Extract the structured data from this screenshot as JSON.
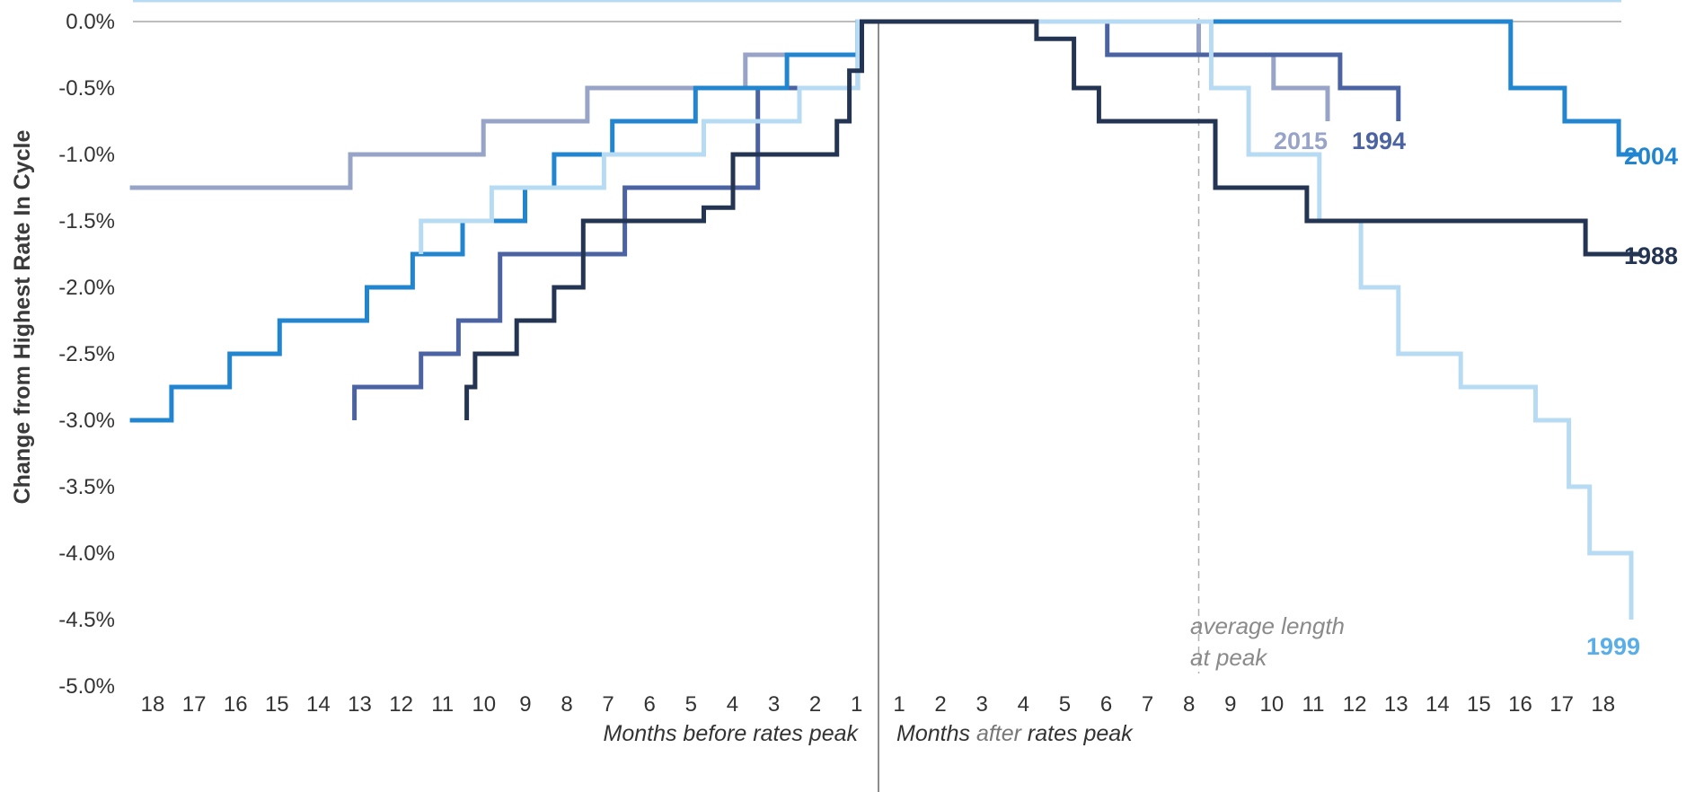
{
  "chart_data": {
    "type": "line",
    "step": true,
    "ylabel": "Change from Highest Rate In Cycle",
    "ylim": [
      -5.0,
      0.0
    ],
    "yticks": [
      "0.0%",
      "-0.5%",
      "-1.0%",
      "-1.5%",
      "-2.0%",
      "-2.5%",
      "-3.0%",
      "-3.5%",
      "-4.0%",
      "-4.5%",
      "-5.0%"
    ],
    "xlim": [
      -18,
      18
    ],
    "xticks_before": [
      "18",
      "17",
      "16",
      "15",
      "14",
      "13",
      "12",
      "11",
      "10",
      "9",
      "8",
      "7",
      "6",
      "5",
      "4",
      "3",
      "2",
      "1"
    ],
    "xticks_after": [
      "1",
      "2",
      "3",
      "4",
      "5",
      "6",
      "7",
      "8",
      "9",
      "10",
      "11",
      "12",
      "13",
      "14",
      "15",
      "16",
      "17",
      "18"
    ],
    "xlabel_before": {
      "a": "Months",
      "b": " before rates peak"
    },
    "xlabel_after": {
      "a": "Months ",
      "b": "after",
      "c": " rates peak"
    },
    "annotation": {
      "line1": "average length",
      "line2": "at peak",
      "x": 7.7
    },
    "series": [
      {
        "name": "2015",
        "color": "#97a4c8",
        "points": [
          [
            -18,
            -1.25
          ],
          [
            -12.7,
            -1.25
          ],
          [
            -12.7,
            -1.0
          ],
          [
            -9.5,
            -1.0
          ],
          [
            -9.5,
            -0.75
          ],
          [
            -7,
            -0.75
          ],
          [
            -7,
            -0.5
          ],
          [
            -3.2,
            -0.5
          ],
          [
            -3.2,
            -0.25
          ],
          [
            -0.5,
            -0.25
          ],
          [
            -0.5,
            0
          ],
          [
            7.7,
            0
          ],
          [
            7.7,
            -0.25
          ],
          [
            9.5,
            -0.25
          ],
          [
            9.5,
            -0.5
          ],
          [
            10.8,
            -0.5
          ],
          [
            10.8,
            -0.75
          ]
        ]
      },
      {
        "name": "1994",
        "color": "#4b63a2",
        "points": [
          [
            -12.6,
            -3.0
          ],
          [
            -12.6,
            -2.75
          ],
          [
            -11,
            -2.75
          ],
          [
            -11,
            -2.5
          ],
          [
            -10.1,
            -2.5
          ],
          [
            -10.1,
            -2.25
          ],
          [
            -9.1,
            -2.25
          ],
          [
            -9.1,
            -1.75
          ],
          [
            -6.1,
            -1.75
          ],
          [
            -6.1,
            -1.25
          ],
          [
            -2.9,
            -1.25
          ],
          [
            -2.9,
            -0.5
          ],
          [
            -0.5,
            -0.5
          ],
          [
            -0.5,
            0
          ],
          [
            5.5,
            0
          ],
          [
            5.5,
            -0.25
          ],
          [
            11.1,
            -0.25
          ],
          [
            11.1,
            -0.5
          ],
          [
            12.5,
            -0.5
          ],
          [
            12.5,
            -0.75
          ]
        ]
      },
      {
        "name": "2004",
        "color": "#2185d0",
        "points": [
          [
            -18,
            -3.0
          ],
          [
            -17,
            -3.0
          ],
          [
            -17,
            -2.75
          ],
          [
            -15.6,
            -2.75
          ],
          [
            -15.6,
            -2.5
          ],
          [
            -14.4,
            -2.5
          ],
          [
            -14.4,
            -2.25
          ],
          [
            -12.3,
            -2.25
          ],
          [
            -12.3,
            -2.0
          ],
          [
            -11.2,
            -2.0
          ],
          [
            -11.2,
            -1.75
          ],
          [
            -10,
            -1.75
          ],
          [
            -10,
            -1.5
          ],
          [
            -8.5,
            -1.5
          ],
          [
            -8.5,
            -1.25
          ],
          [
            -7.8,
            -1.25
          ],
          [
            -7.8,
            -1.0
          ],
          [
            -7,
            -1.0
          ],
          [
            -7,
            -1.0
          ],
          [
            -6.4,
            -1.0
          ],
          [
            -6.4,
            -0.75
          ],
          [
            -4.4,
            -0.75
          ],
          [
            -4.4,
            -0.5
          ],
          [
            -3.5,
            -0.5
          ],
          [
            -3.5,
            -0.5
          ],
          [
            -2.2,
            -0.5
          ],
          [
            -2.2,
            -0.25
          ],
          [
            -0.5,
            -0.25
          ],
          [
            -0.5,
            0
          ],
          [
            15.2,
            0
          ],
          [
            15.2,
            -0.5
          ],
          [
            16.5,
            -0.5
          ],
          [
            16.5,
            -0.75
          ],
          [
            17.8,
            -0.75
          ],
          [
            17.8,
            -1.0
          ],
          [
            18.3,
            -1.0
          ]
        ]
      },
      {
        "name": "1999",
        "color": "#b8dbf4",
        "points": [
          [
            -11,
            -1.75
          ],
          [
            -11,
            -1.5
          ],
          [
            -9.3,
            -1.5
          ],
          [
            -9.3,
            -1.25
          ],
          [
            -6.6,
            -1.25
          ],
          [
            -6.6,
            -1.0
          ],
          [
            -4.2,
            -1.0
          ],
          [
            -4.2,
            -0.75
          ],
          [
            -1.9,
            -0.75
          ],
          [
            -1.9,
            -0.5
          ],
          [
            -0.5,
            -0.5
          ],
          [
            -0.5,
            0
          ],
          [
            8,
            0
          ],
          [
            8,
            -0.5
          ],
          [
            8.9,
            -0.5
          ],
          [
            8.9,
            -1.0
          ],
          [
            10.6,
            -1.0
          ],
          [
            10.6,
            -1.5
          ],
          [
            11.6,
            -1.5
          ],
          [
            11.6,
            -2.0
          ],
          [
            12.5,
            -2.0
          ],
          [
            12.5,
            -2.5
          ],
          [
            14,
            -2.5
          ],
          [
            14,
            -2.75
          ],
          [
            15.8,
            -2.75
          ],
          [
            15.8,
            -3.0
          ],
          [
            16.6,
            -3.0
          ],
          [
            16.6,
            -3.5
          ],
          [
            17.1,
            -3.5
          ],
          [
            17.1,
            -4.0
          ],
          [
            18.1,
            -4.0
          ],
          [
            18.1,
            -4.5
          ]
        ]
      },
      {
        "name": "1988",
        "color": "#243553",
        "points": [
          [
            -9.9,
            -3.0
          ],
          [
            -9.9,
            -2.75
          ],
          [
            -9.7,
            -2.75
          ],
          [
            -9.7,
            -2.5
          ],
          [
            -8.7,
            -2.5
          ],
          [
            -8.7,
            -2.25
          ],
          [
            -7.8,
            -2.25
          ],
          [
            -7.8,
            -2.0
          ],
          [
            -7.1,
            -2.0
          ],
          [
            -7.1,
            -1.5
          ],
          [
            -4.2,
            -1.5
          ],
          [
            -4.2,
            -1.4
          ],
          [
            -3.5,
            -1.4
          ],
          [
            -3.5,
            -1.0
          ],
          [
            -1,
            -1.0
          ],
          [
            -1,
            -0.75
          ],
          [
            -0.7,
            -0.75
          ],
          [
            -0.7,
            -0.37
          ],
          [
            -0.4,
            -0.37
          ],
          [
            -0.4,
            0
          ],
          [
            3.8,
            0
          ],
          [
            3.8,
            -0.13
          ],
          [
            4.7,
            -0.13
          ],
          [
            4.7,
            -0.5
          ],
          [
            5.3,
            -0.5
          ],
          [
            5.3,
            -0.75
          ],
          [
            8.1,
            -0.75
          ],
          [
            8.1,
            -1.25
          ],
          [
            10.3,
            -1.25
          ],
          [
            10.3,
            -1.5
          ],
          [
            17,
            -1.5
          ],
          [
            17,
            -1.75
          ],
          [
            18.3,
            -1.75
          ]
        ]
      }
    ]
  }
}
